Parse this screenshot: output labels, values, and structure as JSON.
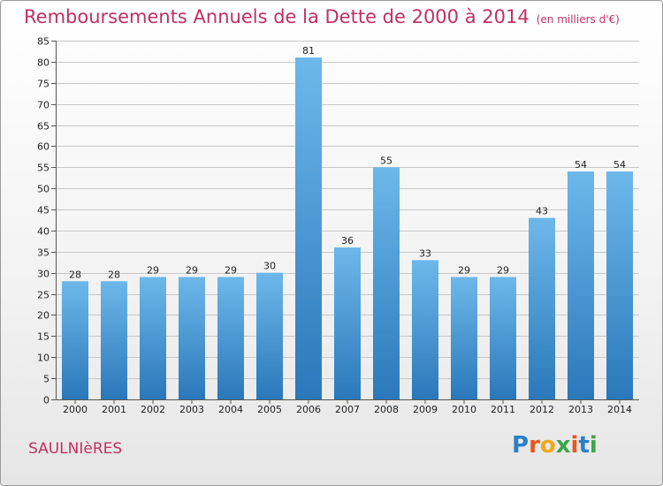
{
  "header": {
    "title": "Remboursements Annuels de la Dette de 2000 à 2014",
    "subtitle": "(en milliers d'€)"
  },
  "footer": {
    "town": "SAULNIèRES",
    "logo_letters": [
      {
        "char": "P",
        "color": "#2a7fc9"
      },
      {
        "char": "r",
        "color": "#e8581c"
      },
      {
        "char": "o",
        "color": "#f0a81a"
      },
      {
        "char": "x",
        "color": "#3aa64a"
      },
      {
        "char": "i",
        "color": "#e8581c"
      },
      {
        "char": "t",
        "color": "#2a7fc9"
      },
      {
        "char": "i",
        "color": "#3aa64a"
      }
    ]
  },
  "colors": {
    "bar_light": "#6db8ea",
    "bar_dark": "#2a78ba",
    "grid": "#c8c8c8",
    "title": "#c2305f"
  },
  "chart_data": {
    "type": "bar",
    "categories": [
      "2000",
      "2001",
      "2002",
      "2003",
      "2004",
      "2005",
      "2006",
      "2007",
      "2008",
      "2009",
      "2010",
      "2011",
      "2012",
      "2013",
      "2014"
    ],
    "values": [
      28,
      28,
      29,
      29,
      29,
      30,
      81,
      36,
      55,
      33,
      29,
      29,
      43,
      54,
      54
    ],
    "data_labels": [
      "28",
      "28",
      "29",
      "29",
      "29",
      "30",
      "81",
      "36",
      "55",
      "33",
      "29",
      "29",
      "43",
      "54",
      "54"
    ],
    "ylim": [
      0,
      85
    ],
    "yticks": [
      0,
      5,
      10,
      15,
      20,
      25,
      30,
      35,
      40,
      45,
      50,
      55,
      60,
      65,
      70,
      75,
      80,
      85
    ],
    "grid": true,
    "title": "Remboursements Annuels de la Dette de 2000 à 2014",
    "subtitle": "(en milliers d'€)",
    "xlabel": "",
    "ylabel": ""
  }
}
